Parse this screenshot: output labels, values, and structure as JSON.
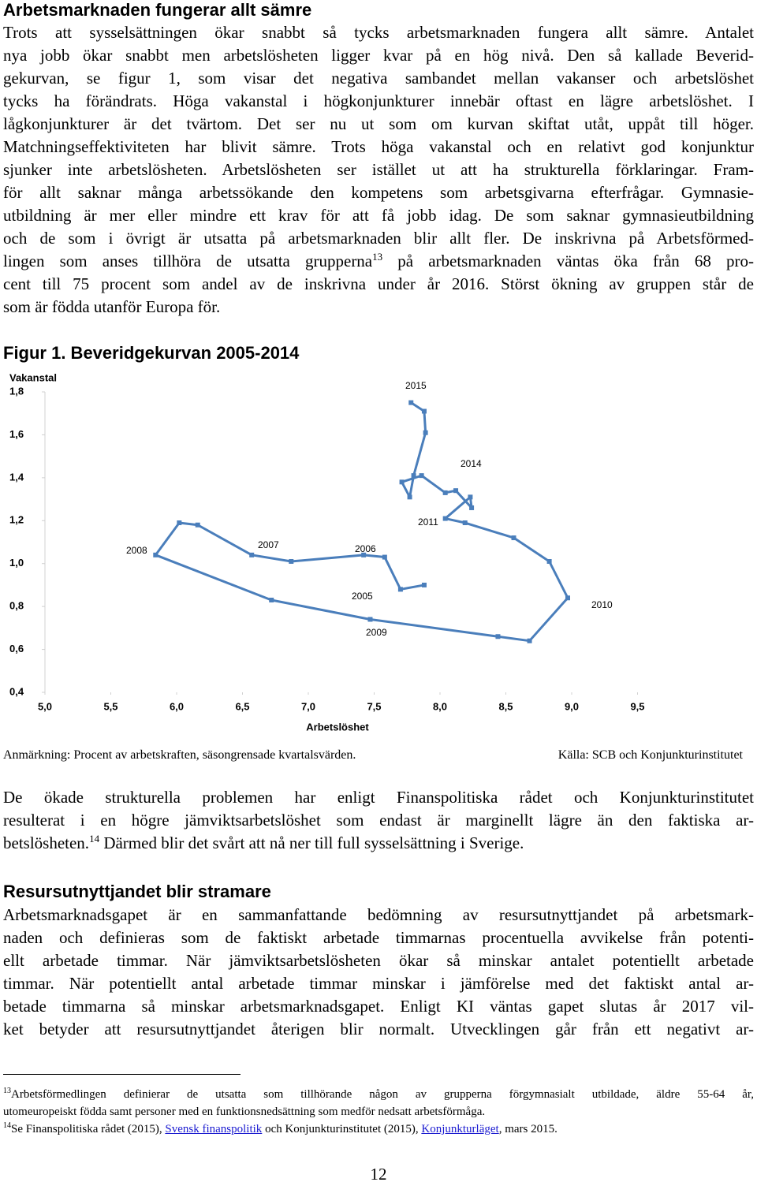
{
  "heading1": "Arbetsmarknaden fungerar allt sämre",
  "paragraph1": [
    "Trots att sysselsättningen ökar snabbt så tycks arbetsmarknaden fungera allt sämre. Antalet",
    "nya jobb ökar snabbt men arbetslösheten ligger kvar på en hög nivå. Den så kallade Beverid-",
    "gekurvan, se figur 1, som visar det negativa sambandet mellan vakanser och arbetslöshet",
    "tycks ha förändrats. Höga vakanstal i högkonjunkturer innebär oftast en lägre arbetslöshet. I",
    "lågkonjunkturer är det tvärtom. Det ser nu ut som om kurvan skiftat utåt, uppåt till höger.",
    "Matchningseffektiviteten har blivit sämre. Trots höga vakanstal och en relativt god konjunktur",
    "sjunker inte arbetslösheten. Arbetslösheten ser istället ut att ha strukturella förklaringar. Fram-",
    "för allt saknar många arbetssökande den kompetens som arbetsgivarna efterfrågar. Gymnasie-",
    "utbildning är mer eller mindre ett krav för att få jobb idag. De som saknar gymnasieutbildning",
    "och de som i övrigt är utsatta på arbetsmarknaden blir allt fler. De inskrivna på Arbetsförmed-",
    {
      "before": "lingen som anses tillhöra de utsatta grupperna",
      "ref": "13",
      "after": " på arbetsmarknaden väntas öka från 68 pro-"
    },
    "cent till 75 procent som andel av de inskrivna under år 2016. Störst ökning av gruppen står de",
    "som är födda utanför Europa för."
  ],
  "figure_title": "Figur 1. Beveridgekurvan 2005-2014",
  "chart_data": {
    "type": "line",
    "y_label": "Vakanstal",
    "x_label": "Arbetslöshet",
    "x": [
      7.88,
      7.7,
      7.58,
      7.42,
      6.87,
      6.57,
      6.16,
      6.02,
      5.84,
      6.72,
      7.47,
      8.44,
      8.68,
      8.97,
      8.83,
      8.56,
      8.19,
      8.04,
      8.23,
      8.24,
      8.12,
      8.04,
      7.86,
      7.71,
      7.77,
      7.8,
      7.89,
      7.88,
      7.78
    ],
    "values": [
      0.9,
      0.88,
      1.03,
      1.04,
      1.01,
      1.04,
      1.18,
      1.19,
      1.04,
      0.83,
      0.74,
      0.66,
      0.64,
      0.84,
      1.01,
      1.12,
      1.19,
      1.21,
      1.31,
      1.26,
      1.34,
      1.33,
      1.41,
      1.38,
      1.31,
      1.41,
      1.61,
      1.71,
      1.75
    ],
    "color": "#4a7ebb",
    "xlim": [
      5.0,
      9.5
    ],
    "ylim": [
      0.4,
      1.8
    ],
    "xticks": [
      {
        "value": 5.0,
        "label": "5,0"
      },
      {
        "value": 5.5,
        "label": "5,5"
      },
      {
        "value": 6.0,
        "label": "6,0"
      },
      {
        "value": 6.5,
        "label": "6,5"
      },
      {
        "value": 7.0,
        "label": "7,0"
      },
      {
        "value": 7.5,
        "label": "7,5"
      },
      {
        "value": 8.0,
        "label": "8,0"
      },
      {
        "value": 8.5,
        "label": "8,5"
      },
      {
        "value": 9.0,
        "label": "9,0"
      },
      {
        "value": 9.5,
        "label": "9,5"
      }
    ],
    "yticks": [
      {
        "value": 0.4,
        "label": "0,4"
      },
      {
        "value": 0.6,
        "label": "0,6"
      },
      {
        "value": 0.8,
        "label": "0,8"
      },
      {
        "value": 1.0,
        "label": "1,0"
      },
      {
        "value": 1.2,
        "label": "1,2"
      },
      {
        "value": 1.4,
        "label": "1,4"
      },
      {
        "value": 1.6,
        "label": "1,6"
      },
      {
        "value": 1.8,
        "label": "1,8"
      }
    ],
    "annotations": [
      "2015",
      "2014",
      "2011",
      "2008",
      "2007",
      "2006",
      "2005",
      "2010",
      "2009"
    ]
  },
  "figure_note": "Anmärkning: Procent av arbetskraften, säsongrensade kvartalsvärden.",
  "figure_source": "Källa: SCB och Konjunkturinstitutet",
  "paragraph2": [
    "De ökade strukturella problemen har enligt Finanspolitiska rådet och Konjunkturinstitutet",
    "resulterat i en högre jämviktsarbetslöshet som endast är marginellt lägre än den faktiska ar-",
    {
      "before": "betslösheten.",
      "ref": "14",
      "after": " Därmed blir det svårt att nå ner till full sysselsättning i Sverige."
    }
  ],
  "heading2": "Resursutnyttjandet blir stramare",
  "paragraph3": [
    "Arbetsmarknadsgapet är en sammanfattande bedömning av resursutnyttjandet på arbetsmark-",
    "naden och definieras som de faktiskt arbetade timmarnas procentuella avvikelse från potenti-",
    "ellt arbetade timmar. När jämviktsarbetslösheten ökar så minskar antalet potentiellt arbetade",
    "timmar. När potentiellt antal arbetade timmar minskar i jämförelse med det faktiskt antal ar-",
    "betade timmarna så minskar arbetsmarknadsgapet.  Enligt KI väntas gapet slutas år 2017 vil-",
    "ket betyder att resursutnyttjandet återigen blir normalt. Utvecklingen går från ett negativt ar-"
  ],
  "footnotes": [
    {
      "ref": "13",
      "lines": [
        "Arbetsförmedlingen definierar de utsatta som tillhörande någon av grupperna förgymnasialt utbildade, äldre 55-64 år,",
        "utomeuropeiskt födda samt personer med en funktionsnedsättning som medför nedsatt arbetsförmåga."
      ]
    },
    {
      "ref": "14",
      "segments": [
        {
          "text": "Se Finanspolitiska rådet (2015), "
        },
        {
          "link": "Svensk finanspolitik"
        },
        {
          "text": " och Konjunkturinstitutet (2015), "
        },
        {
          "link": "Konjunkturläget"
        },
        {
          "text": ", mars 2015."
        }
      ]
    }
  ],
  "page_number": "12"
}
